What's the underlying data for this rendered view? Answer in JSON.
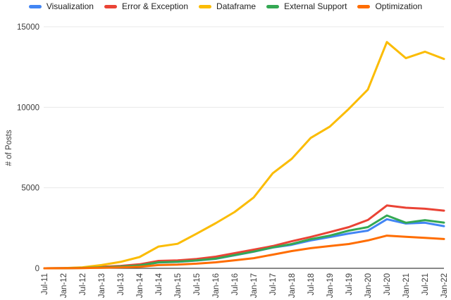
{
  "chart_data": {
    "type": "line",
    "title": "",
    "xlabel": "",
    "ylabel": "# of Posts",
    "ylim": [
      0,
      15000
    ],
    "yticks": [
      0,
      5000,
      10000,
      15000
    ],
    "ytick_labels": [
      "0",
      "5000",
      "10000",
      "15000"
    ],
    "grid": "horizontal-only",
    "legend_position": "top",
    "x_label_rotation": -90,
    "categories": [
      "Jul-11",
      "Jan-12",
      "Jul-12",
      "Jan-13",
      "Jul-13",
      "Jan-14",
      "Jul-14",
      "Jan-15",
      "Jul-15",
      "Jan-16",
      "Jul-16",
      "Jan-17",
      "Jul-17",
      "Jan-18",
      "Jul-18",
      "Jan-19",
      "Jul-19",
      "Jan-20",
      "Jul-20",
      "Jan-21",
      "Jul-21",
      "Jan-22"
    ],
    "series": [
      {
        "name": "Visualization",
        "color": "#4285F4",
        "values": [
          0,
          5,
          20,
          60,
          110,
          180,
          360,
          400,
          480,
          590,
          810,
          1030,
          1290,
          1460,
          1730,
          1940,
          2160,
          2340,
          3050,
          2780,
          2830,
          2620
        ]
      },
      {
        "name": "Error & Exception",
        "color": "#EA4335",
        "values": [
          0,
          10,
          40,
          90,
          150,
          250,
          460,
          490,
          580,
          720,
          940,
          1160,
          1380,
          1680,
          1950,
          2250,
          2560,
          3000,
          3900,
          3760,
          3700,
          3580
        ]
      },
      {
        "name": "Dataframe",
        "color": "#FBBC04",
        "values": [
          0,
          10,
          60,
          200,
          400,
          700,
          1350,
          1520,
          2150,
          2800,
          3500,
          4400,
          5900,
          6800,
          8100,
          8800,
          9900,
          11100,
          14050,
          13050,
          13450,
          13000
        ]
      },
      {
        "name": "External Support",
        "color": "#34A853",
        "values": [
          0,
          5,
          20,
          60,
          110,
          180,
          370,
          410,
          490,
          600,
          820,
          1040,
          1300,
          1510,
          1810,
          2030,
          2340,
          2560,
          3280,
          2830,
          2990,
          2840
        ]
      },
      {
        "name": "Optimization",
        "color": "#FF6D01",
        "values": [
          0,
          5,
          15,
          30,
          60,
          90,
          200,
          230,
          290,
          370,
          500,
          630,
          850,
          1070,
          1250,
          1380,
          1510,
          1730,
          2030,
          1960,
          1890,
          1820
        ]
      }
    ]
  },
  "colors": {
    "background": "#ffffff",
    "gridline": "#e8e8e8",
    "axis_line": "#424242",
    "tick_label": "#3c3c3c",
    "axis_title": "#3c3c3c",
    "legend_text": "#212121"
  }
}
